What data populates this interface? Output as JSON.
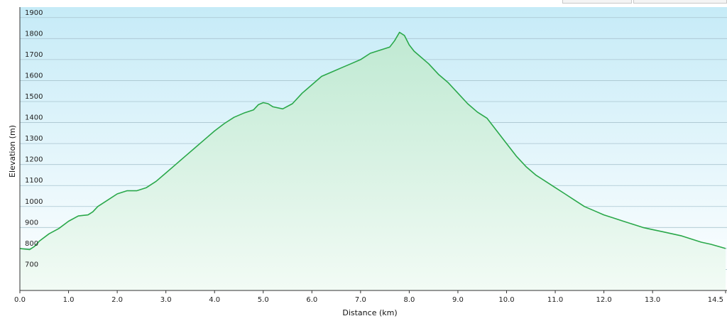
{
  "chart_data": {
    "type": "area",
    "title": "",
    "xlabel": "Distance  (km)",
    "ylabel": "Elevation (m)",
    "xlim": [
      0,
      14.5
    ],
    "ylim": [
      600,
      1950
    ],
    "x_ticks": [
      0,
      1,
      2,
      3,
      4,
      5,
      6,
      7,
      8,
      9,
      10,
      11,
      12,
      13,
      14.5
    ],
    "x_tick_labels": [
      "0.0",
      "1.0",
      "2.0",
      "3.0",
      "4.0",
      "5.0",
      "6.0",
      "7.0",
      "8.0",
      "9.0",
      "10.0",
      "11.0",
      "12.0",
      "13.0",
      "14.5"
    ],
    "y_ticks": [
      700,
      800,
      900,
      1000,
      1100,
      1200,
      1300,
      1400,
      1500,
      1600,
      1700,
      1800,
      1900
    ],
    "y_tick_labels": [
      "700",
      "800",
      "900",
      "1000",
      "1100",
      "1200",
      "1300",
      "1400",
      "1500",
      "1600",
      "1700",
      "1800",
      "1900"
    ],
    "grid": true,
    "colors": {
      "line": "#2aa84a",
      "fill_top": "#bfe9d2",
      "fill_bottom": "#eefaf2",
      "bg_top": "#c6ebf7",
      "bg_bottom": "#ffffff"
    },
    "series": [
      {
        "x": [
          0.0,
          0.2,
          0.3,
          0.4,
          0.6,
          0.8,
          1.0,
          1.2,
          1.4,
          1.5,
          1.6,
          1.8,
          2.0,
          2.2,
          2.4,
          2.6,
          2.8,
          3.0,
          3.2,
          3.4,
          3.6,
          3.8,
          4.0,
          4.2,
          4.4,
          4.6,
          4.8,
          4.9,
          5.0,
          5.1,
          5.2,
          5.4,
          5.6,
          5.8,
          6.0,
          6.2,
          6.4,
          6.6,
          6.8,
          7.0,
          7.2,
          7.4,
          7.6,
          7.7,
          7.8,
          7.9,
          8.0,
          8.1,
          8.2,
          8.4,
          8.6,
          8.8,
          9.0,
          9.2,
          9.4,
          9.6,
          9.8,
          10.0,
          10.2,
          10.4,
          10.6,
          10.8,
          11.0,
          11.2,
          11.4,
          11.6,
          11.8,
          12.0,
          12.2,
          12.4,
          12.6,
          12.8,
          13.0,
          13.2,
          13.4,
          13.6,
          13.8,
          14.0,
          14.2,
          14.5
        ],
        "y": [
          800,
          795,
          810,
          835,
          870,
          895,
          930,
          955,
          960,
          975,
          1000,
          1030,
          1060,
          1075,
          1075,
          1090,
          1120,
          1160,
          1200,
          1240,
          1280,
          1320,
          1360,
          1395,
          1425,
          1445,
          1460,
          1485,
          1495,
          1490,
          1475,
          1465,
          1490,
          1540,
          1580,
          1620,
          1640,
          1660,
          1680,
          1700,
          1730,
          1745,
          1760,
          1790,
          1830,
          1815,
          1770,
          1740,
          1720,
          1680,
          1630,
          1590,
          1540,
          1490,
          1450,
          1420,
          1360,
          1300,
          1240,
          1190,
          1150,
          1120,
          1090,
          1060,
          1030,
          1000,
          980,
          960,
          945,
          930,
          915,
          900,
          890,
          880,
          870,
          860,
          845,
          830,
          820,
          800
        ]
      }
    ]
  }
}
